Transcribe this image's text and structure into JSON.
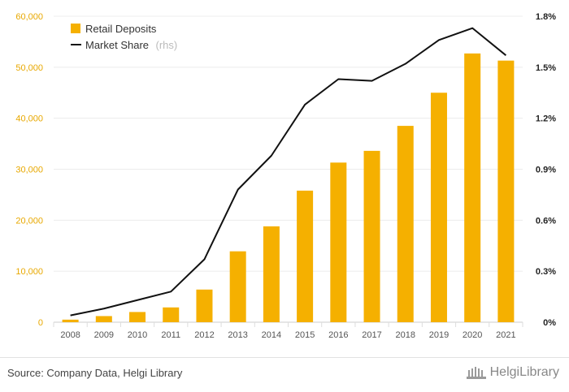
{
  "chart_data": {
    "type": "bar",
    "categories": [
      "2008",
      "2009",
      "2010",
      "2011",
      "2012",
      "2013",
      "2014",
      "2015",
      "2016",
      "2017",
      "2018",
      "2019",
      "2020",
      "2021"
    ],
    "series": [
      {
        "name": "Retail Deposits",
        "axis": "left",
        "type": "bar",
        "color": "#f5b000",
        "values": [
          500,
          1200,
          2000,
          2900,
          6400,
          13900,
          18800,
          25800,
          31300,
          33600,
          38500,
          45000,
          52700,
          51300
        ]
      },
      {
        "name": "Market Share",
        "name_suffix": "(rhs)",
        "axis": "right",
        "type": "line",
        "color": "#111111",
        "values": [
          0.04,
          0.08,
          0.13,
          0.18,
          0.37,
          0.78,
          0.98,
          1.28,
          1.43,
          1.42,
          1.52,
          1.66,
          1.73,
          1.57
        ]
      }
    ],
    "y_left": {
      "min": 0,
      "max": 60000,
      "ticks": [
        "0",
        "10,000",
        "20,000",
        "30,000",
        "40,000",
        "50,000",
        "60,000"
      ]
    },
    "y_right": {
      "min": 0,
      "max": 1.8,
      "ticks": [
        "0%",
        "0.3%",
        "0.6%",
        "0.9%",
        "1.2%",
        "1.5%",
        "1.8%"
      ]
    },
    "grid": true,
    "legend_position": "top-left"
  },
  "footer": {
    "source": "Source: Company Data, Helgi Library",
    "brand": "HelgiLibrary"
  }
}
